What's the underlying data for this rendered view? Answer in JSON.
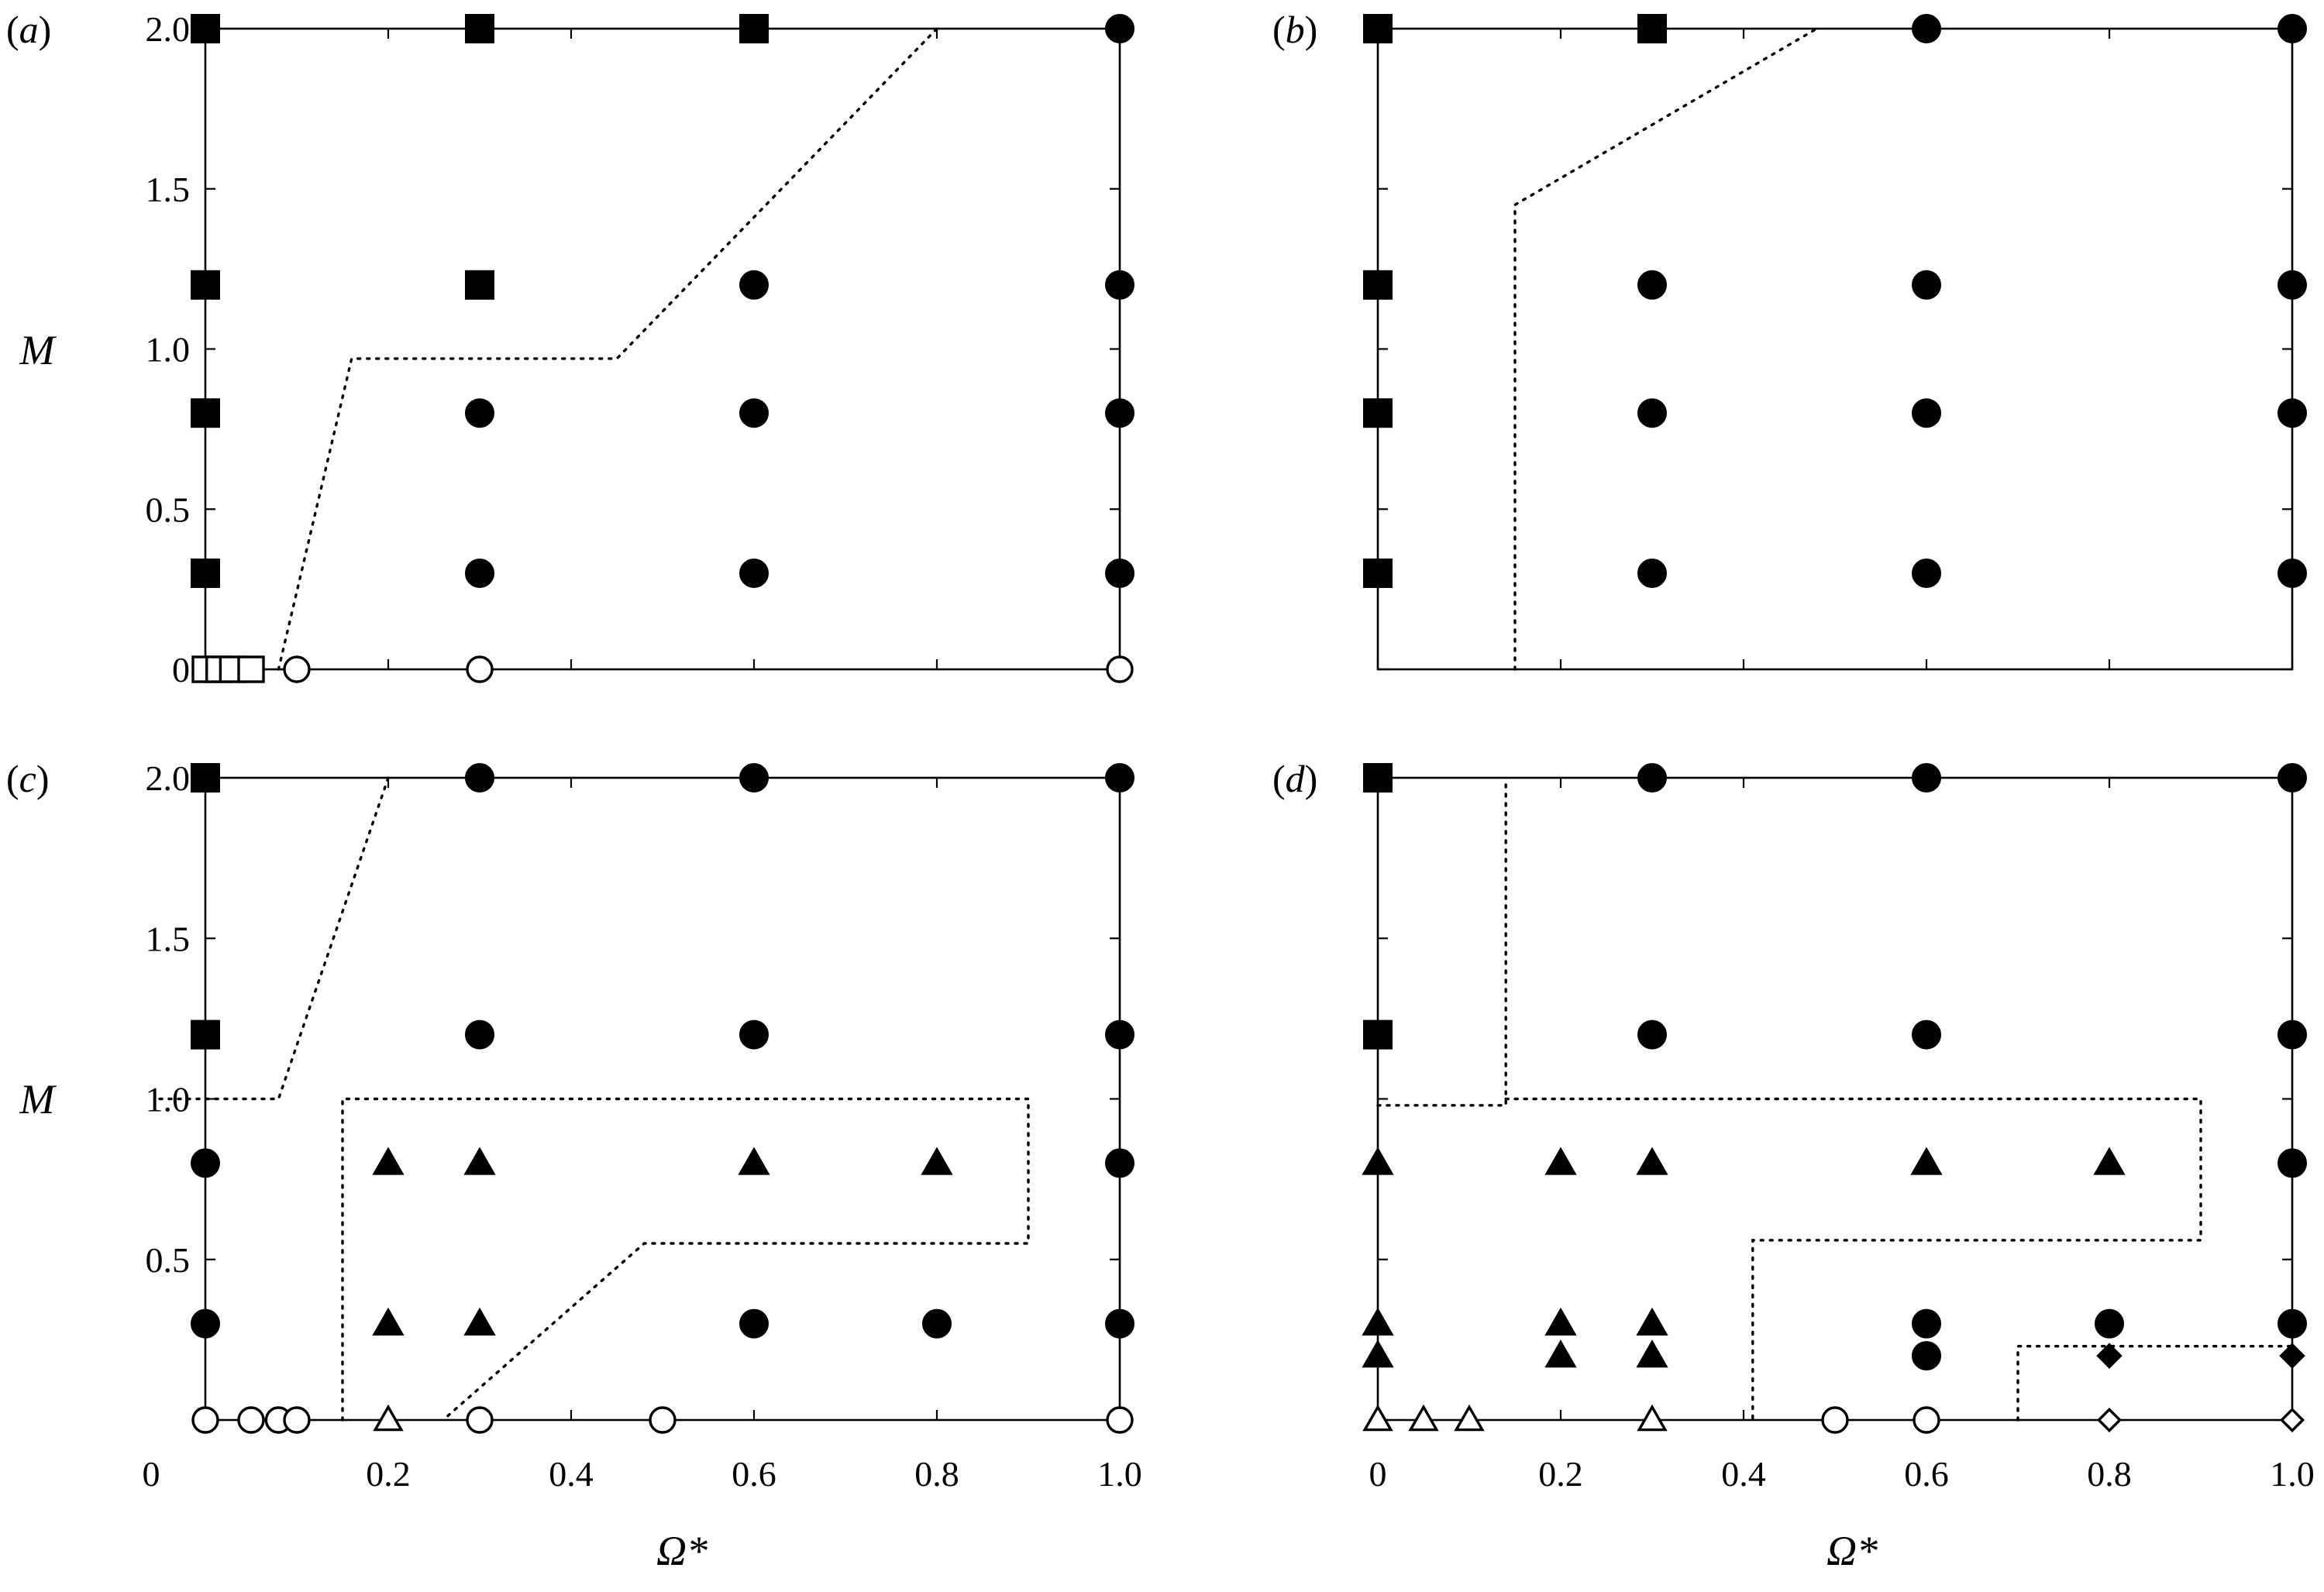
{
  "chart_data": [
    {
      "type": "scatter",
      "panel_label": "(a)",
      "xlabel": "",
      "ylabel": "M",
      "xlim": [
        -0.05,
        1.0
      ],
      "ylim": [
        0,
        2.0
      ],
      "x_ticks": [
        0,
        0.2,
        0.4,
        0.6,
        0.8,
        1.0
      ],
      "y_ticks": [
        0,
        0.5,
        1.0,
        1.5,
        2.0
      ],
      "x_tick_labels": [],
      "y_tick_labels": [
        "0",
        "0.5",
        "1.0",
        "1.5",
        "2.0"
      ],
      "markers": [
        {
          "x": 0,
          "y": 2.0,
          "shape": "square",
          "filled": true
        },
        {
          "x": 0.3,
          "y": 2.0,
          "shape": "square",
          "filled": true
        },
        {
          "x": 0.6,
          "y": 2.0,
          "shape": "square",
          "filled": true
        },
        {
          "x": 1.0,
          "y": 2.0,
          "shape": "circle",
          "filled": true
        },
        {
          "x": 0,
          "y": 1.2,
          "shape": "square",
          "filled": true
        },
        {
          "x": 0.3,
          "y": 1.2,
          "shape": "square",
          "filled": true
        },
        {
          "x": 0.6,
          "y": 1.2,
          "shape": "circle",
          "filled": true
        },
        {
          "x": 1.0,
          "y": 1.2,
          "shape": "circle",
          "filled": true
        },
        {
          "x": 0,
          "y": 0.8,
          "shape": "square",
          "filled": true
        },
        {
          "x": 0.3,
          "y": 0.8,
          "shape": "circle",
          "filled": true
        },
        {
          "x": 0.6,
          "y": 0.8,
          "shape": "circle",
          "filled": true
        },
        {
          "x": 1.0,
          "y": 0.8,
          "shape": "circle",
          "filled": true
        },
        {
          "x": 0,
          "y": 0.3,
          "shape": "square",
          "filled": true
        },
        {
          "x": 0.3,
          "y": 0.3,
          "shape": "circle",
          "filled": true
        },
        {
          "x": 0.6,
          "y": 0.3,
          "shape": "circle",
          "filled": true
        },
        {
          "x": 1.0,
          "y": 0.3,
          "shape": "circle",
          "filled": true
        },
        {
          "x": 0,
          "y": 0,
          "shape": "square",
          "filled": false
        },
        {
          "x": 0.015,
          "y": 0,
          "shape": "square",
          "filled": false
        },
        {
          "x": 0.03,
          "y": 0,
          "shape": "square",
          "filled": false
        },
        {
          "x": 0.05,
          "y": 0,
          "shape": "square",
          "filled": false
        },
        {
          "x": 0.1,
          "y": 0,
          "shape": "circle",
          "filled": false
        },
        {
          "x": 0.3,
          "y": 0,
          "shape": "circle",
          "filled": false
        },
        {
          "x": 1.0,
          "y": 0,
          "shape": "circle",
          "filled": false
        }
      ],
      "boundaries": [
        [
          [
            0.08,
            0
          ],
          [
            0.16,
            0.97
          ],
          [
            0.45,
            0.97
          ],
          [
            0.8,
            2.0
          ]
        ]
      ]
    },
    {
      "type": "scatter",
      "panel_label": "(b)",
      "xlabel": "",
      "ylabel": "",
      "xlim": [
        0,
        1.0
      ],
      "ylim": [
        0,
        2.0
      ],
      "x_ticks": [
        0,
        0.2,
        0.4,
        0.6,
        0.8,
        1.0
      ],
      "y_ticks": [
        0,
        0.5,
        1.0,
        1.5,
        2.0
      ],
      "x_tick_labels": [],
      "y_tick_labels": [],
      "markers": [
        {
          "x": 0,
          "y": 2.0,
          "shape": "square",
          "filled": true
        },
        {
          "x": 0.3,
          "y": 2.0,
          "shape": "square",
          "filled": true
        },
        {
          "x": 0.6,
          "y": 2.0,
          "shape": "circle",
          "filled": true
        },
        {
          "x": 1.0,
          "y": 2.0,
          "shape": "circle",
          "filled": true
        },
        {
          "x": 0,
          "y": 1.2,
          "shape": "square",
          "filled": true
        },
        {
          "x": 0.3,
          "y": 1.2,
          "shape": "circle",
          "filled": true
        },
        {
          "x": 0.6,
          "y": 1.2,
          "shape": "circle",
          "filled": true
        },
        {
          "x": 1.0,
          "y": 1.2,
          "shape": "circle",
          "filled": true
        },
        {
          "x": 0,
          "y": 0.8,
          "shape": "square",
          "filled": true
        },
        {
          "x": 0.3,
          "y": 0.8,
          "shape": "circle",
          "filled": true
        },
        {
          "x": 0.6,
          "y": 0.8,
          "shape": "circle",
          "filled": true
        },
        {
          "x": 1.0,
          "y": 0.8,
          "shape": "circle",
          "filled": true
        },
        {
          "x": 0,
          "y": 0.3,
          "shape": "square",
          "filled": true
        },
        {
          "x": 0.3,
          "y": 0.3,
          "shape": "circle",
          "filled": true
        },
        {
          "x": 0.6,
          "y": 0.3,
          "shape": "circle",
          "filled": true
        },
        {
          "x": 1.0,
          "y": 0.3,
          "shape": "circle",
          "filled": true
        }
      ],
      "boundaries": [
        [
          [
            0.15,
            0
          ],
          [
            0.15,
            1.45
          ],
          [
            0.48,
            2.0
          ]
        ]
      ]
    },
    {
      "type": "scatter",
      "panel_label": "(c)",
      "xlabel": "Ω*",
      "ylabel": "M",
      "xlim": [
        -0.05,
        1.0
      ],
      "ylim": [
        0,
        2.0
      ],
      "x_ticks": [
        0,
        0.2,
        0.4,
        0.6,
        0.8,
        1.0
      ],
      "y_ticks": [
        0,
        0.5,
        1.0,
        1.5,
        2.0
      ],
      "x_tick_labels": [
        "0",
        "0.2",
        "0.4",
        "0.6",
        "0.8",
        "1.0"
      ],
      "y_tick_labels": [
        "",
        "0.5",
        "1.0",
        "1.5",
        "2.0"
      ],
      "markers": [
        {
          "x": 0,
          "y": 2.0,
          "shape": "square",
          "filled": true
        },
        {
          "x": 0.3,
          "y": 2.0,
          "shape": "circle",
          "filled": true
        },
        {
          "x": 0.6,
          "y": 2.0,
          "shape": "circle",
          "filled": true
        },
        {
          "x": 1.0,
          "y": 2.0,
          "shape": "circle",
          "filled": true
        },
        {
          "x": 0,
          "y": 1.2,
          "shape": "square",
          "filled": true
        },
        {
          "x": 0.3,
          "y": 1.2,
          "shape": "circle",
          "filled": true
        },
        {
          "x": 0.6,
          "y": 1.2,
          "shape": "circle",
          "filled": true
        },
        {
          "x": 1.0,
          "y": 1.2,
          "shape": "circle",
          "filled": true
        },
        {
          "x": 0,
          "y": 0.8,
          "shape": "circle",
          "filled": true
        },
        {
          "x": 0.2,
          "y": 0.8,
          "shape": "triangle",
          "filled": true
        },
        {
          "x": 0.3,
          "y": 0.8,
          "shape": "triangle",
          "filled": true
        },
        {
          "x": 0.6,
          "y": 0.8,
          "shape": "triangle",
          "filled": true
        },
        {
          "x": 0.8,
          "y": 0.8,
          "shape": "triangle",
          "filled": true
        },
        {
          "x": 1.0,
          "y": 0.8,
          "shape": "circle",
          "filled": true
        },
        {
          "x": 0,
          "y": 0.3,
          "shape": "circle",
          "filled": true
        },
        {
          "x": 0.2,
          "y": 0.3,
          "shape": "triangle",
          "filled": true
        },
        {
          "x": 0.3,
          "y": 0.3,
          "shape": "triangle",
          "filled": true
        },
        {
          "x": 0.6,
          "y": 0.3,
          "shape": "circle",
          "filled": true
        },
        {
          "x": 0.8,
          "y": 0.3,
          "shape": "circle",
          "filled": true
        },
        {
          "x": 1.0,
          "y": 0.3,
          "shape": "circle",
          "filled": true
        },
        {
          "x": 0,
          "y": 0,
          "shape": "circle",
          "filled": false
        },
        {
          "x": 0.05,
          "y": 0,
          "shape": "circle",
          "filled": false
        },
        {
          "x": 0.08,
          "y": 0,
          "shape": "circle",
          "filled": false
        },
        {
          "x": 0.1,
          "y": 0,
          "shape": "circle",
          "filled": false
        },
        {
          "x": 0.2,
          "y": 0,
          "shape": "triangle",
          "filled": false
        },
        {
          "x": 0.3,
          "y": 0,
          "shape": "circle",
          "filled": false
        },
        {
          "x": 0.5,
          "y": 0,
          "shape": "circle",
          "filled": false
        },
        {
          "x": 1.0,
          "y": 0,
          "shape": "circle",
          "filled": false
        }
      ],
      "boundaries": [
        [
          [
            -0.05,
            1.0
          ],
          [
            0.08,
            1.0
          ],
          [
            0.2,
            2.0
          ]
        ],
        [
          [
            0.15,
            0
          ],
          [
            0.15,
            1.0
          ],
          [
            0.9,
            1.0
          ],
          [
            0.9,
            0.55
          ],
          [
            0.48,
            0.55
          ],
          [
            0.26,
            0
          ]
        ]
      ]
    },
    {
      "type": "scatter",
      "panel_label": "(d)",
      "xlabel": "Ω*",
      "ylabel": "",
      "xlim": [
        0,
        1.0
      ],
      "ylim": [
        0,
        2.0
      ],
      "x_ticks": [
        0,
        0.2,
        0.4,
        0.6,
        0.8,
        1.0
      ],
      "y_ticks": [
        0,
        0.5,
        1.0,
        1.5,
        2.0
      ],
      "x_tick_labels": [
        "0",
        "0.2",
        "0.4",
        "0.6",
        "0.8",
        "1.0"
      ],
      "y_tick_labels": [],
      "markers": [
        {
          "x": 0,
          "y": 2.0,
          "shape": "square",
          "filled": true
        },
        {
          "x": 0.3,
          "y": 2.0,
          "shape": "circle",
          "filled": true
        },
        {
          "x": 0.6,
          "y": 2.0,
          "shape": "circle",
          "filled": true
        },
        {
          "x": 1.0,
          "y": 2.0,
          "shape": "circle",
          "filled": true
        },
        {
          "x": 0,
          "y": 1.2,
          "shape": "square",
          "filled": true
        },
        {
          "x": 0.3,
          "y": 1.2,
          "shape": "circle",
          "filled": true
        },
        {
          "x": 0.6,
          "y": 1.2,
          "shape": "circle",
          "filled": true
        },
        {
          "x": 1.0,
          "y": 1.2,
          "shape": "circle",
          "filled": true
        },
        {
          "x": 0,
          "y": 0.8,
          "shape": "triangle",
          "filled": true
        },
        {
          "x": 0.2,
          "y": 0.8,
          "shape": "triangle",
          "filled": true
        },
        {
          "x": 0.3,
          "y": 0.8,
          "shape": "triangle",
          "filled": true
        },
        {
          "x": 0.6,
          "y": 0.8,
          "shape": "triangle",
          "filled": true
        },
        {
          "x": 0.8,
          "y": 0.8,
          "shape": "triangle",
          "filled": true
        },
        {
          "x": 1.0,
          "y": 0.8,
          "shape": "circle",
          "filled": true
        },
        {
          "x": 0,
          "y": 0.3,
          "shape": "triangle",
          "filled": true
        },
        {
          "x": 0.2,
          "y": 0.3,
          "shape": "triangle",
          "filled": true
        },
        {
          "x": 0.3,
          "y": 0.3,
          "shape": "triangle",
          "filled": true
        },
        {
          "x": 0.6,
          "y": 0.3,
          "shape": "circle",
          "filled": true
        },
        {
          "x": 0.8,
          "y": 0.3,
          "shape": "circle",
          "filled": true
        },
        {
          "x": 1.0,
          "y": 0.3,
          "shape": "circle",
          "filled": true
        },
        {
          "x": 0,
          "y": 0.2,
          "shape": "triangle",
          "filled": true
        },
        {
          "x": 0.2,
          "y": 0.2,
          "shape": "triangle",
          "filled": true
        },
        {
          "x": 0.3,
          "y": 0.2,
          "shape": "triangle",
          "filled": true
        },
        {
          "x": 0.6,
          "y": 0.2,
          "shape": "circle",
          "filled": true
        },
        {
          "x": 0.8,
          "y": 0.2,
          "shape": "diamond",
          "filled": true
        },
        {
          "x": 1.0,
          "y": 0.2,
          "shape": "diamond",
          "filled": true
        },
        {
          "x": 0,
          "y": 0,
          "shape": "triangle",
          "filled": false
        },
        {
          "x": 0.05,
          "y": 0,
          "shape": "triangle",
          "filled": false
        },
        {
          "x": 0.1,
          "y": 0,
          "shape": "triangle",
          "filled": false
        },
        {
          "x": 0.3,
          "y": 0,
          "shape": "triangle",
          "filled": false
        },
        {
          "x": 0.5,
          "y": 0,
          "shape": "circle",
          "filled": false
        },
        {
          "x": 0.6,
          "y": 0,
          "shape": "circle",
          "filled": false
        },
        {
          "x": 0.8,
          "y": 0,
          "shape": "diamond",
          "filled": false
        },
        {
          "x": 1.0,
          "y": 0,
          "shape": "diamond",
          "filled": false
        }
      ],
      "boundaries": [
        [
          [
            0,
            0.98
          ],
          [
            0.14,
            0.98
          ],
          [
            0.14,
            2.0
          ]
        ],
        [
          [
            0.14,
            1.0
          ],
          [
            0.9,
            1.0
          ],
          [
            0.9,
            0.56
          ],
          [
            0.41,
            0.56
          ],
          [
            0.41,
            0
          ]
        ],
        [
          [
            0.7,
            0
          ],
          [
            0.7,
            0.23
          ],
          [
            1.0,
            0.23
          ]
        ]
      ]
    }
  ]
}
